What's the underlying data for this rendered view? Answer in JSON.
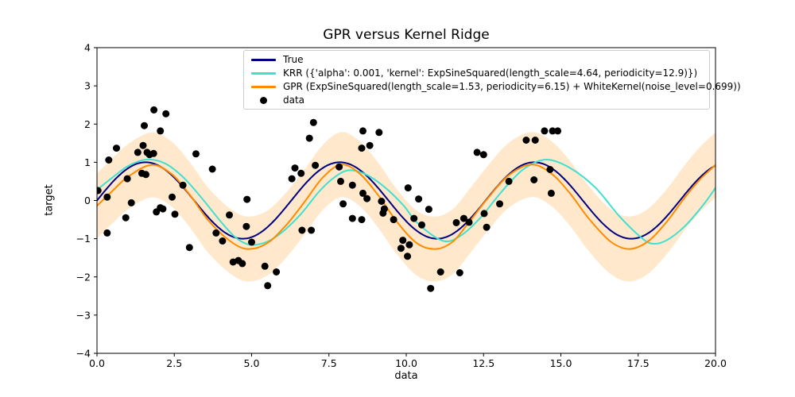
{
  "figure": {
    "title": "GPR versus Kernel Ridge",
    "xlabel": "data",
    "ylabel": "target"
  },
  "chart_data": {
    "type": "line",
    "title": "GPR versus Kernel Ridge",
    "xlabel": "data",
    "ylabel": "target",
    "xlim": [
      0,
      20
    ],
    "ylim": [
      -4,
      4
    ],
    "grid": false,
    "legend_position": "upper center",
    "xtick_labels": [
      "0.0",
      "2.5",
      "5.0",
      "7.5",
      "10.0",
      "12.5",
      "15.0",
      "17.5",
      "20.0"
    ],
    "xtick_values": [
      0,
      2.5,
      5,
      7.5,
      10,
      12.5,
      15,
      17.5,
      20
    ],
    "ytick_labels": [
      "−4",
      "−3",
      "−2",
      "−1",
      "0",
      "1",
      "2",
      "3",
      "4"
    ],
    "ytick_values": [
      -4,
      -3,
      -2,
      -1,
      0,
      1,
      2,
      3,
      4
    ],
    "legend": {
      "items": [
        {
          "label": "True",
          "color": "#000080",
          "marker": "line"
        },
        {
          "label": "KRR ({'alpha': 0.001, 'kernel': ExpSineSquared(length_scale=4.64, periodicity=12.9)})",
          "color": "#40E0D0",
          "marker": "line"
        },
        {
          "label": "GPR (ExpSineSquared(length_scale=1.53, periodicity=6.15) + WhiteKernel(noise_level=0.699))",
          "color": "#FF8C00",
          "marker": "line"
        },
        {
          "label": "data",
          "color": "#000000",
          "marker": "dot"
        }
      ]
    },
    "series": [
      {
        "name": "True",
        "color": "#000080",
        "line_width": 2,
        "sine": {
          "amplitude": 1.0,
          "period": 6.2832,
          "phase": 0.0,
          "offset": 0.0
        }
      },
      {
        "name": "KRR",
        "color": "#40E0D0",
        "line_width": 2,
        "points": [
          [
            0,
            0.28
          ],
          [
            0.5,
            0.6
          ],
          [
            1.0,
            0.9
          ],
          [
            1.6,
            1.07
          ],
          [
            2.2,
            0.97
          ],
          [
            2.8,
            0.6
          ],
          [
            3.4,
            0.05
          ],
          [
            4.0,
            -0.55
          ],
          [
            4.5,
            -0.98
          ],
          [
            4.96,
            -1.16
          ],
          [
            5.5,
            -1.08
          ],
          [
            6.0,
            -0.82
          ],
          [
            6.6,
            -0.35
          ],
          [
            7.2,
            0.25
          ],
          [
            7.7,
            0.62
          ],
          [
            8.15,
            0.79
          ],
          [
            8.7,
            0.68
          ],
          [
            9.3,
            0.35
          ],
          [
            9.9,
            -0.12
          ],
          [
            10.4,
            -0.62
          ],
          [
            11.2,
            -1.06
          ],
          [
            11.8,
            -0.9
          ],
          [
            12.4,
            -0.45
          ],
          [
            12.9,
            0.05
          ],
          [
            13.4,
            0.52
          ],
          [
            13.9,
            0.88
          ],
          [
            14.55,
            1.07
          ],
          [
            15.3,
            0.85
          ],
          [
            16.1,
            0.35
          ],
          [
            16.9,
            -0.42
          ],
          [
            17.6,
            -0.97
          ],
          [
            17.95,
            -1.13
          ],
          [
            18.4,
            -1.05
          ],
          [
            19.0,
            -0.68
          ],
          [
            19.6,
            -0.12
          ],
          [
            20,
            0.33
          ]
        ]
      },
      {
        "name": "GPR",
        "color": "#FF8C00",
        "line_width": 2,
        "band_halfwidth": 0.85,
        "band_color": "#FF8C00",
        "band_opacity": 0.2,
        "points": [
          [
            0,
            -0.14
          ],
          [
            0.5,
            0.25
          ],
          [
            1.0,
            0.62
          ],
          [
            1.75,
            0.93
          ],
          [
            2.4,
            0.7
          ],
          [
            3.0,
            0.15
          ],
          [
            3.6,
            -0.52
          ],
          [
            4.3,
            -1.06
          ],
          [
            4.87,
            -1.27
          ],
          [
            5.5,
            -1.12
          ],
          [
            6.1,
            -0.66
          ],
          [
            6.7,
            -0.05
          ],
          [
            7.3,
            0.6
          ],
          [
            7.9,
            0.94
          ],
          [
            8.5,
            0.7
          ],
          [
            9.1,
            0.13
          ],
          [
            9.7,
            -0.56
          ],
          [
            10.35,
            -1.12
          ],
          [
            10.95,
            -1.27
          ],
          [
            11.5,
            -1.08
          ],
          [
            12.0,
            -0.6
          ],
          [
            12.6,
            0.02
          ],
          [
            13.3,
            0.65
          ],
          [
            14.05,
            0.94
          ],
          [
            14.7,
            0.7
          ],
          [
            15.3,
            0.18
          ],
          [
            15.9,
            -0.47
          ],
          [
            16.6,
            -1.07
          ],
          [
            17.2,
            -1.27
          ],
          [
            17.8,
            -1.08
          ],
          [
            18.4,
            -0.58
          ],
          [
            19.0,
            0.07
          ],
          [
            19.5,
            0.55
          ],
          [
            20,
            0.93
          ]
        ]
      }
    ],
    "scatter": {
      "name": "data",
      "color": "#000000",
      "radius": 4.5,
      "points": [
        [
          0.03,
          0.26
        ],
        [
          0.33,
          0.09
        ],
        [
          0.33,
          -0.85
        ],
        [
          0.38,
          1.06
        ],
        [
          0.63,
          1.37
        ],
        [
          0.93,
          -0.45
        ],
        [
          0.98,
          0.57
        ],
        [
          1.11,
          -0.06
        ],
        [
          1.32,
          1.26
        ],
        [
          1.45,
          0.71
        ],
        [
          1.49,
          1.44
        ],
        [
          1.53,
          1.96
        ],
        [
          1.58,
          0.68
        ],
        [
          1.62,
          1.26
        ],
        [
          1.7,
          1.2
        ],
        [
          1.83,
          1.23
        ],
        [
          1.84,
          2.37
        ],
        [
          1.92,
          -0.3
        ],
        [
          2.05,
          1.82
        ],
        [
          2.05,
          -0.19
        ],
        [
          2.13,
          -0.22
        ],
        [
          2.23,
          2.27
        ],
        [
          2.43,
          0.09
        ],
        [
          2.52,
          -0.36
        ],
        [
          2.78,
          0.4
        ],
        [
          2.99,
          -1.23
        ],
        [
          3.2,
          1.22
        ],
        [
          3.73,
          0.82
        ],
        [
          3.85,
          -0.85
        ],
        [
          4.06,
          -1.06
        ],
        [
          4.28,
          -0.38
        ],
        [
          4.4,
          -1.61
        ],
        [
          4.57,
          -1.57
        ],
        [
          4.7,
          -1.65
        ],
        [
          4.85,
          0.03
        ],
        [
          4.83,
          -0.68
        ],
        [
          5.0,
          -1.09
        ],
        [
          5.43,
          -1.72
        ],
        [
          5.52,
          -2.23
        ],
        [
          5.8,
          -1.87
        ],
        [
          6.3,
          0.57
        ],
        [
          6.4,
          0.85
        ],
        [
          6.6,
          0.71
        ],
        [
          6.63,
          -0.78
        ],
        [
          6.93,
          -0.78
        ],
        [
          6.87,
          1.63
        ],
        [
          7.06,
          0.92
        ],
        [
          7.0,
          2.04
        ],
        [
          7.83,
          0.88
        ],
        [
          7.88,
          0.5
        ],
        [
          7.96,
          -0.09
        ],
        [
          8.26,
          0.4
        ],
        [
          8.26,
          -0.47
        ],
        [
          8.56,
          1.37
        ],
        [
          8.56,
          -0.5
        ],
        [
          8.6,
          1.82
        ],
        [
          8.6,
          0.19
        ],
        [
          8.73,
          0.05
        ],
        [
          8.82,
          1.44
        ],
        [
          9.12,
          1.78
        ],
        [
          9.2,
          -0.02
        ],
        [
          9.25,
          -0.33
        ],
        [
          9.29,
          -0.22
        ],
        [
          9.59,
          -0.5
        ],
        [
          9.83,
          -1.25
        ],
        [
          9.89,
          -1.04
        ],
        [
          10.06,
          0.33
        ],
        [
          10.04,
          -1.46
        ],
        [
          10.1,
          -1.16
        ],
        [
          10.25,
          -0.47
        ],
        [
          10.4,
          0.04
        ],
        [
          10.5,
          -0.64
        ],
        [
          10.73,
          -0.23
        ],
        [
          10.79,
          -2.3
        ],
        [
          11.11,
          -1.87
        ],
        [
          11.62,
          -0.58
        ],
        [
          11.73,
          -1.89
        ],
        [
          11.86,
          -0.47
        ],
        [
          12.03,
          -0.57
        ],
        [
          12.29,
          1.26
        ],
        [
          12.5,
          1.2
        ],
        [
          12.52,
          -0.34
        ],
        [
          12.6,
          -0.7
        ],
        [
          13.02,
          -0.09
        ],
        [
          13.32,
          0.5
        ],
        [
          13.88,
          1.58
        ],
        [
          14.13,
          0.54
        ],
        [
          14.17,
          1.58
        ],
        [
          14.47,
          1.82
        ],
        [
          14.65,
          0.81
        ],
        [
          14.69,
          0.19
        ],
        [
          14.73,
          1.82
        ],
        [
          14.9,
          1.82
        ]
      ]
    }
  }
}
